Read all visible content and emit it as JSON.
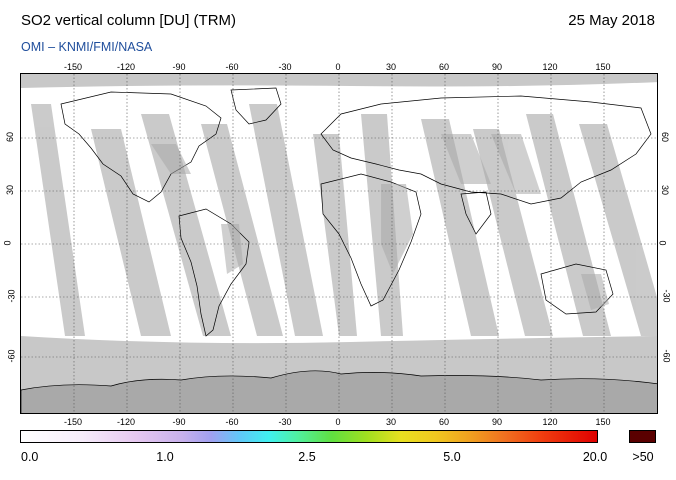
{
  "header": {
    "title": "SO2 vertical column [DU] (TRM)",
    "date": "25 May 2018",
    "credit": "OMI  –  KNMI/FMI/NASA"
  },
  "map": {
    "lon_ticks": [
      "-150",
      "-120",
      "-90",
      "-60",
      "-30",
      "0",
      "30",
      "60",
      "90",
      "120",
      "150"
    ],
    "lat_ticks": [
      "60",
      "30",
      "0",
      "-30",
      "-60"
    ],
    "colors": {
      "background": "#ffffff",
      "no_data": "#c8c8c8",
      "land_shade": "#a9a9a9",
      "coastline": "#000000",
      "grid": "#555555"
    }
  },
  "colorbar": {
    "labels": [
      "0.0",
      "1.0",
      "2.5",
      "5.0",
      "20.0",
      ">50"
    ],
    "over_color": "#5a0000"
  }
}
